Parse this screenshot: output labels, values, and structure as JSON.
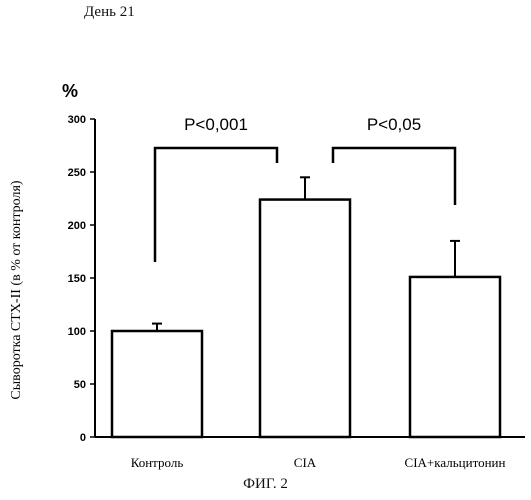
{
  "header_text": "День 21",
  "figure_caption": "ФИГ. 2",
  "chart_data": {
    "type": "bar",
    "unit_label": "%",
    "ylabel": "Сыворотка СТХ-II (в % от контроля)",
    "xlabel": "",
    "ylim": [
      0,
      300
    ],
    "yticks": [
      0,
      50,
      100,
      150,
      200,
      250,
      300
    ],
    "categories": [
      "Контроль",
      "CIA",
      "CIA+кальцитонин"
    ],
    "values": [
      100,
      224,
      151
    ],
    "error_upper": [
      107,
      245,
      185
    ],
    "annotations": [
      {
        "text": "P<0,001",
        "from": 0,
        "to": 1
      },
      {
        "text": "P<0,05",
        "from": 1,
        "to": 2
      }
    ],
    "grid": false,
    "colors": {
      "bar_fill": "#ffffff",
      "stroke": "#000000"
    }
  }
}
